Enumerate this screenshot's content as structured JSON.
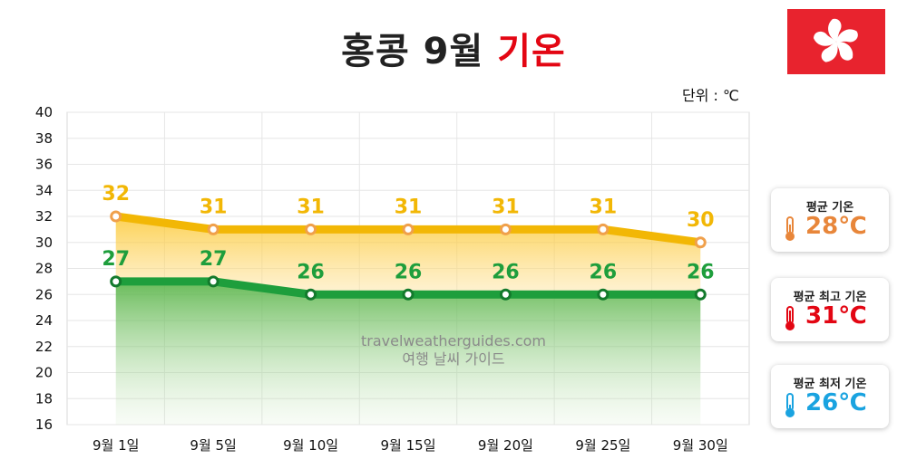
{
  "header": {
    "title_main": "홍콩 9월",
    "title_accent": "기온",
    "unit": "단위 : ℃"
  },
  "flag": {
    "name": "hong-kong-flag-icon"
  },
  "watermark": {
    "line1": "travelweatherguides.com",
    "line2": "여행 날씨 가이드"
  },
  "summary_cards": [
    {
      "label": "평균 기온",
      "value": "28℃",
      "color": "#e8863a"
    },
    {
      "label": "평균 최고 기온",
      "value": "31℃",
      "color": "#e30613"
    },
    {
      "label": "평균 최저 기온",
      "value": "26℃",
      "color": "#1aa3e0"
    }
  ],
  "chart_data": {
    "type": "line",
    "categories": [
      "9월 1일",
      "9월 5일",
      "9월 10일",
      "9월 15일",
      "9월 20일",
      "9월 25일",
      "9월 30일"
    ],
    "series": [
      {
        "values": [
          32,
          31,
          31,
          31,
          31,
          31,
          30
        ],
        "color": "#f2b705"
      },
      {
        "values": [
          27,
          27,
          26,
          26,
          26,
          26,
          26
        ],
        "color": "#1e9e3c"
      }
    ],
    "ylim": [
      16,
      40
    ],
    "yticks": [
      "40",
      "38",
      "36",
      "34",
      "32",
      "30",
      "28",
      "26",
      "24",
      "22",
      "20",
      "18",
      "16"
    ],
    "grid": true,
    "xlabel": "",
    "ylabel": ""
  }
}
